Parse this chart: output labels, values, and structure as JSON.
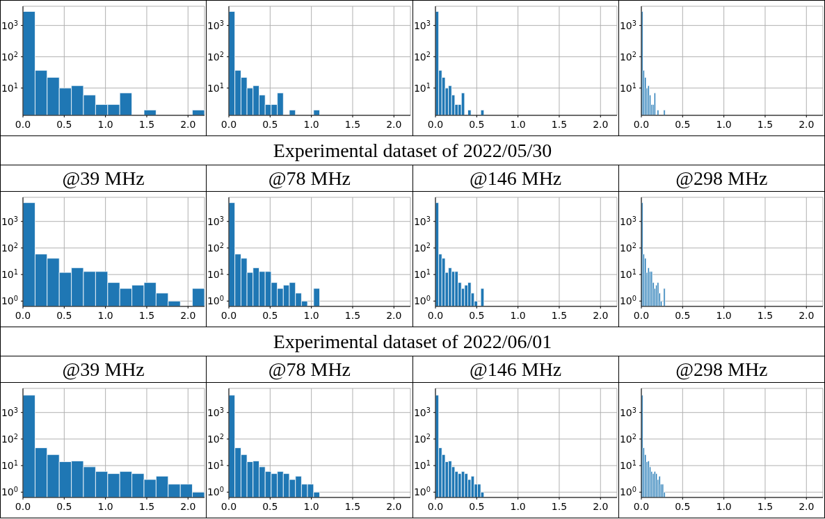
{
  "chart_data": [
    {
      "type": "histogram",
      "bins": [
        0,
        0.147,
        0.293,
        0.44,
        0.587,
        0.733,
        0.88,
        1.027,
        1.173,
        1.32,
        1.467,
        1.613,
        1.76,
        1.907,
        2.053,
        2.2
      ],
      "values": [
        2800,
        37,
        22,
        10,
        12,
        6,
        3,
        3,
        7,
        null,
        2,
        null,
        null,
        null,
        2
      ],
      "color": "#1f77b4",
      "xlim": [
        0,
        2.2
      ],
      "xticks": [
        {
          "value": 0,
          "label": "0.0"
        },
        {
          "value": 0.5,
          "label": "0.5"
        },
        {
          "value": 1,
          "label": "1.0"
        },
        {
          "value": 1.5,
          "label": "1.5"
        },
        {
          "value": 2,
          "label": "2.0"
        }
      ],
      "ylim": [
        1.35,
        4100
      ],
      "yticks": [
        {
          "value": 10,
          "label": "10$^{1}$"
        },
        {
          "value": 100,
          "label": "10$^{2}$"
        },
        {
          "value": 1000,
          "label": "10$^{3}$"
        }
      ],
      "log": "y",
      "grid": true
    },
    {
      "type": "histogram",
      "bins": [
        0,
        0.073,
        0.147,
        0.22,
        0.293,
        0.367,
        0.44,
        0.513,
        0.587,
        0.66,
        0.733,
        0.807,
        0.88,
        0.953,
        1.027,
        1.1
      ],
      "values": [
        2800,
        37,
        22,
        10,
        12,
        6,
        3,
        3,
        7,
        null,
        2,
        null,
        null,
        null,
        2
      ],
      "color": "#1f77b4",
      "xlim": [
        0,
        2.2
      ],
      "xticks": [
        {
          "value": 0,
          "label": "0.0"
        },
        {
          "value": 0.5,
          "label": "0.5"
        },
        {
          "value": 1,
          "label": "1.0"
        },
        {
          "value": 1.5,
          "label": "1.5"
        },
        {
          "value": 2,
          "label": "2.0"
        }
      ],
      "ylim": [
        1.35,
        4100
      ],
      "yticks": [
        {
          "value": 10,
          "label": "10$^{1}$"
        },
        {
          "value": 100,
          "label": "10$^{2}$"
        },
        {
          "value": 1000,
          "label": "10$^{3}$"
        }
      ],
      "log": "y",
      "grid": true
    },
    {
      "type": "histogram",
      "bins": [
        0,
        0.039,
        0.078,
        0.118,
        0.157,
        0.196,
        0.235,
        0.274,
        0.314,
        0.353,
        0.392,
        0.431,
        0.47,
        0.51,
        0.549,
        0.588
      ],
      "values": [
        2800,
        37,
        22,
        10,
        12,
        6,
        3,
        3,
        7,
        null,
        2,
        null,
        null,
        null,
        2
      ],
      "color": "#1f77b4",
      "xlim": [
        0,
        2.2
      ],
      "xticks": [
        {
          "value": 0,
          "label": "0.0"
        },
        {
          "value": 0.5,
          "label": "0.5"
        },
        {
          "value": 1,
          "label": "1.0"
        },
        {
          "value": 1.5,
          "label": "1.5"
        },
        {
          "value": 2,
          "label": "2.0"
        }
      ],
      "ylim": [
        1.35,
        4100
      ],
      "yticks": [
        {
          "value": 10,
          "label": "10$^{1}$"
        },
        {
          "value": 100,
          "label": "10$^{2}$"
        },
        {
          "value": 1000,
          "label": "10$^{3}$"
        }
      ],
      "log": "y",
      "grid": true
    },
    {
      "type": "histogram",
      "bins": [
        0,
        0.019,
        0.038,
        0.058,
        0.077,
        0.096,
        0.115,
        0.134,
        0.154,
        0.173,
        0.192,
        0.211,
        0.23,
        0.25,
        0.269,
        0.288
      ],
      "values": [
        2800,
        37,
        22,
        10,
        12,
        6,
        3,
        3,
        7,
        null,
        2,
        null,
        null,
        null,
        2
      ],
      "color": "#1f77b4",
      "xlim": [
        0,
        2.2
      ],
      "xticks": [
        {
          "value": 0,
          "label": "0.0"
        },
        {
          "value": 0.5,
          "label": "0.5"
        },
        {
          "value": 1,
          "label": "1.0"
        },
        {
          "value": 1.5,
          "label": "1.5"
        },
        {
          "value": 2,
          "label": "2.0"
        }
      ],
      "ylim": [
        1.35,
        4100
      ],
      "yticks": [
        {
          "value": 10,
          "label": "10$^{1}$"
        },
        {
          "value": 100,
          "label": "10$^{2}$"
        },
        {
          "value": 1000,
          "label": "10$^{3}$"
        }
      ],
      "log": "y",
      "grid": true
    },
    {
      "type": "other",
      "title": "Experimental dataset of 2022/05/30"
    },
    {
      "type": "histogram",
      "title": "@39 MHz",
      "bins": [
        0,
        0.147,
        0.293,
        0.44,
        0.587,
        0.733,
        0.88,
        1.027,
        1.173,
        1.32,
        1.467,
        1.613,
        1.76,
        1.907,
        2.053,
        2.2
      ],
      "values": [
        5100,
        59,
        41,
        12,
        18,
        13,
        13,
        5,
        3,
        4,
        5,
        2,
        1,
        null,
        3
      ],
      "color": "#1f77b4",
      "xlim": [
        0,
        2.2
      ],
      "xticks": [
        {
          "value": 0,
          "label": "0.0"
        },
        {
          "value": 0.5,
          "label": "0.5"
        },
        {
          "value": 1,
          "label": "1.0"
        },
        {
          "value": 1.5,
          "label": "1.5"
        },
        {
          "value": 2,
          "label": "2.0"
        }
      ],
      "ylim": [
        0.63,
        8100
      ],
      "yticks": [
        {
          "value": 1,
          "label": "10$^{0}$"
        },
        {
          "value": 10,
          "label": "10$^{1}$"
        },
        {
          "value": 100,
          "label": "10$^{2}$"
        },
        {
          "value": 1000,
          "label": "10$^{3}$"
        }
      ],
      "log": "y",
      "grid": true
    },
    {
      "type": "histogram",
      "title": "@78 MHz",
      "bins": [
        0,
        0.073,
        0.147,
        0.22,
        0.293,
        0.367,
        0.44,
        0.513,
        0.587,
        0.66,
        0.733,
        0.807,
        0.88,
        0.953,
        1.027,
        1.1
      ],
      "values": [
        5100,
        59,
        41,
        12,
        18,
        13,
        13,
        5,
        3,
        4,
        5,
        2,
        1,
        null,
        3
      ],
      "color": "#1f77b4",
      "xlim": [
        0,
        2.2
      ],
      "xticks": [
        {
          "value": 0,
          "label": "0.0"
        },
        {
          "value": 0.5,
          "label": "0.5"
        },
        {
          "value": 1,
          "label": "1.0"
        },
        {
          "value": 1.5,
          "label": "1.5"
        },
        {
          "value": 2,
          "label": "2.0"
        }
      ],
      "ylim": [
        0.63,
        8100
      ],
      "yticks": [
        {
          "value": 1,
          "label": "10$^{0}$"
        },
        {
          "value": 10,
          "label": "10$^{1}$"
        },
        {
          "value": 100,
          "label": "10$^{2}$"
        },
        {
          "value": 1000,
          "label": "10$^{3}$"
        }
      ],
      "log": "y",
      "grid": true
    },
    {
      "type": "histogram",
      "title": "@146 MHz",
      "bins": [
        0,
        0.039,
        0.078,
        0.118,
        0.157,
        0.196,
        0.235,
        0.274,
        0.314,
        0.353,
        0.392,
        0.431,
        0.47,
        0.51,
        0.549,
        0.588
      ],
      "values": [
        5100,
        59,
        41,
        12,
        18,
        13,
        13,
        5,
        3,
        4,
        5,
        2,
        1,
        null,
        3
      ],
      "color": "#1f77b4",
      "xlim": [
        0,
        2.2
      ],
      "xticks": [
        {
          "value": 0,
          "label": "0.0"
        },
        {
          "value": 0.5,
          "label": "0.5"
        },
        {
          "value": 1,
          "label": "1.0"
        },
        {
          "value": 1.5,
          "label": "1.5"
        },
        {
          "value": 2,
          "label": "2.0"
        }
      ],
      "ylim": [
        0.63,
        8100
      ],
      "yticks": [
        {
          "value": 1,
          "label": "10$^{0}$"
        },
        {
          "value": 10,
          "label": "10$^{1}$"
        },
        {
          "value": 100,
          "label": "10$^{2}$"
        },
        {
          "value": 1000,
          "label": "10$^{3}$"
        }
      ],
      "log": "y",
      "grid": true
    },
    {
      "type": "histogram",
      "title": "@298 MHz",
      "bins": [
        0,
        0.019,
        0.038,
        0.058,
        0.077,
        0.096,
        0.115,
        0.134,
        0.154,
        0.173,
        0.192,
        0.211,
        0.23,
        0.25,
        0.269,
        0.288
      ],
      "values": [
        5100,
        59,
        41,
        12,
        18,
        13,
        13,
        5,
        3,
        4,
        5,
        2,
        1,
        null,
        3
      ],
      "color": "#1f77b4",
      "xlim": [
        0,
        2.2
      ],
      "xticks": [
        {
          "value": 0,
          "label": "0.0"
        },
        {
          "value": 0.5,
          "label": "0.5"
        },
        {
          "value": 1,
          "label": "1.0"
        },
        {
          "value": 1.5,
          "label": "1.5"
        },
        {
          "value": 2,
          "label": "2.0"
        }
      ],
      "ylim": [
        0.63,
        8100
      ],
      "yticks": [
        {
          "value": 1,
          "label": "10$^{0}$"
        },
        {
          "value": 10,
          "label": "10$^{1}$"
        },
        {
          "value": 100,
          "label": "10$^{2}$"
        },
        {
          "value": 1000,
          "label": "10$^{3}$"
        }
      ],
      "log": "y",
      "grid": true
    },
    {
      "type": "other",
      "title": "Experimental dataset of 2022/06/01"
    },
    {
      "type": "histogram",
      "title": "@39 MHz",
      "bins": [
        0,
        0.147,
        0.293,
        0.44,
        0.587,
        0.733,
        0.88,
        1.027,
        1.173,
        1.32,
        1.467,
        1.613,
        1.76,
        1.907,
        2.053,
        2.2
      ],
      "values": [
        4500,
        47,
        26,
        14,
        15,
        9,
        6,
        5,
        6,
        5,
        3,
        4,
        2,
        2,
        1
      ],
      "color": "#1f77b4",
      "xlim": [
        0,
        2.2
      ],
      "xticks": [
        {
          "value": 0,
          "label": "0.0"
        },
        {
          "value": 0.5,
          "label": "0.5"
        },
        {
          "value": 1,
          "label": "1.0"
        },
        {
          "value": 1.5,
          "label": "1.5"
        },
        {
          "value": 2,
          "label": "2.0"
        }
      ],
      "ylim": [
        0.63,
        8100
      ],
      "yticks": [
        {
          "value": 1,
          "label": "10$^{0}$"
        },
        {
          "value": 10,
          "label": "10$^{1}$"
        },
        {
          "value": 100,
          "label": "10$^{2}$"
        },
        {
          "value": 1000,
          "label": "10$^{3}$"
        }
      ],
      "log": "y",
      "grid": true
    },
    {
      "type": "histogram",
      "title": "@78 MHz",
      "bins": [
        0,
        0.073,
        0.147,
        0.22,
        0.293,
        0.367,
        0.44,
        0.513,
        0.587,
        0.66,
        0.733,
        0.807,
        0.88,
        0.953,
        1.027,
        1.1
      ],
      "values": [
        4500,
        47,
        26,
        14,
        15,
        9,
        6,
        5,
        6,
        5,
        3,
        4,
        2,
        2,
        1
      ],
      "color": "#1f77b4",
      "xlim": [
        0,
        2.2
      ],
      "xticks": [
        {
          "value": 0,
          "label": "0.0"
        },
        {
          "value": 0.5,
          "label": "0.5"
        },
        {
          "value": 1,
          "label": "1.0"
        },
        {
          "value": 1.5,
          "label": "1.5"
        },
        {
          "value": 2,
          "label": "2.0"
        }
      ],
      "ylim": [
        0.63,
        8100
      ],
      "yticks": [
        {
          "value": 1,
          "label": "10$^{0}$"
        },
        {
          "value": 10,
          "label": "10$^{1}$"
        },
        {
          "value": 100,
          "label": "10$^{2}$"
        },
        {
          "value": 1000,
          "label": "10$^{3}$"
        }
      ],
      "log": "y",
      "grid": true
    },
    {
      "type": "histogram",
      "title": "@146 MHz",
      "bins": [
        0,
        0.039,
        0.078,
        0.118,
        0.157,
        0.196,
        0.235,
        0.274,
        0.314,
        0.353,
        0.392,
        0.431,
        0.47,
        0.51,
        0.549,
        0.588
      ],
      "values": [
        4500,
        47,
        26,
        14,
        15,
        9,
        6,
        5,
        6,
        5,
        3,
        4,
        2,
        2,
        1
      ],
      "color": "#1f77b4",
      "xlim": [
        0,
        2.2
      ],
      "xticks": [
        {
          "value": 0,
          "label": "0.0"
        },
        {
          "value": 0.5,
          "label": "0.5"
        },
        {
          "value": 1,
          "label": "1.0"
        },
        {
          "value": 1.5,
          "label": "1.5"
        },
        {
          "value": 2,
          "label": "2.0"
        }
      ],
      "ylim": [
        0.63,
        8100
      ],
      "yticks": [
        {
          "value": 1,
          "label": "10$^{0}$"
        },
        {
          "value": 10,
          "label": "10$^{1}$"
        },
        {
          "value": 100,
          "label": "10$^{2}$"
        },
        {
          "value": 1000,
          "label": "10$^{3}$"
        }
      ],
      "log": "y",
      "grid": true
    },
    {
      "type": "histogram",
      "title": "@298 MHz",
      "bins": [
        0,
        0.019,
        0.038,
        0.058,
        0.077,
        0.096,
        0.115,
        0.134,
        0.154,
        0.173,
        0.192,
        0.211,
        0.23,
        0.25,
        0.269,
        0.288
      ],
      "values": [
        4500,
        47,
        26,
        14,
        15,
        9,
        6,
        5,
        6,
        5,
        3,
        4,
        2,
        2,
        1
      ],
      "color": "#1f77b4",
      "xlim": [
        0,
        2.2
      ],
      "xticks": [
        {
          "value": 0,
          "label": "0.0"
        },
        {
          "value": 0.5,
          "label": "0.5"
        },
        {
          "value": 1,
          "label": "1.0"
        },
        {
          "value": 1.5,
          "label": "1.5"
        },
        {
          "value": 2,
          "label": "2.0"
        }
      ],
      "ylim": [
        0.63,
        8100
      ],
      "yticks": [
        {
          "value": 1,
          "label": "10$^{0}$"
        },
        {
          "value": 10,
          "label": "10$^{1}$"
        },
        {
          "value": 100,
          "label": "10$^{2}$"
        },
        {
          "value": 1000,
          "label": "10$^{3}$"
        }
      ],
      "log": "y",
      "grid": true
    }
  ]
}
